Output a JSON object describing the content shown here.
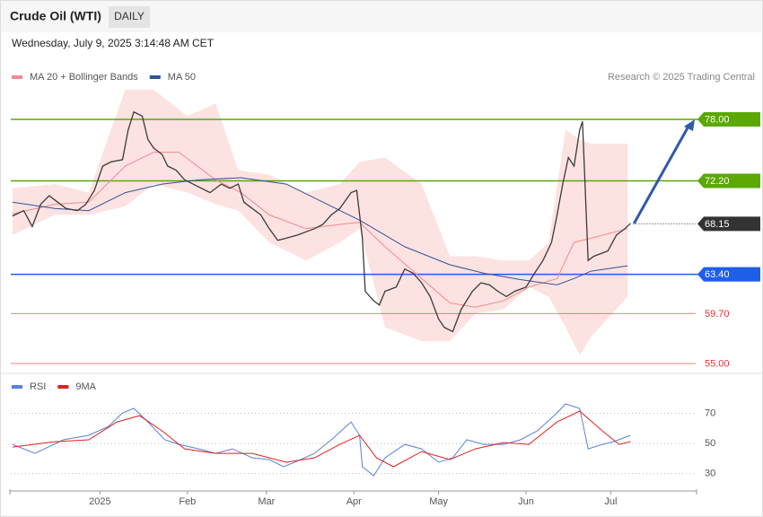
{
  "header": {
    "title": "Crude Oil (WTI)",
    "timeframe": "DAILY",
    "timestamp": "Wednesday, July 9, 2025 3:14:48 AM CET"
  },
  "chart_data": [
    {
      "type": "line",
      "credit": "Research © 2025 Trading Central",
      "xlim": [
        -0.6,
        242.1
      ],
      "ylim": [
        54.15,
        85.86
      ],
      "band": {
        "x": [
          0,
          15,
          27,
          40,
          50,
          62,
          72,
          80,
          91,
          104,
          116,
          123,
          132,
          145,
          155,
          164,
          174,
          183,
          190,
          196,
          201,
          205,
          218
        ],
        "upper": [
          71.5,
          71.9,
          71.1,
          80.8,
          80.8,
          78.3,
          79.5,
          73.2,
          72.8,
          71.1,
          71.9,
          74.0,
          74.4,
          71.9,
          65.1,
          65.1,
          64.7,
          64.7,
          66.4,
          77.0,
          76.1,
          75.7,
          75.7
        ],
        "lower": [
          67.1,
          69.0,
          69.0,
          69.8,
          71.9,
          71.1,
          70.0,
          69.4,
          66.4,
          64.7,
          66.4,
          67.7,
          58.4,
          57.1,
          57.1,
          59.7,
          60.1,
          62.2,
          61.3,
          58.4,
          55.8,
          57.5,
          61.3
        ],
        "color": "#fde2e2"
      },
      "series": [
        {
          "name": "MA 20 + Bollinger Bands",
          "color": "#f08a8a",
          "x": [
            0,
            15,
            27,
            40,
            50,
            59,
            72,
            81,
            91,
            104,
            116,
            123,
            132,
            145,
            155,
            164,
            174,
            183,
            193,
            199,
            205,
            218
          ],
          "values": [
            69.1,
            70.0,
            70.2,
            73.6,
            74.9,
            74.9,
            72.3,
            71.1,
            69.0,
            67.7,
            68.1,
            68.3,
            66.0,
            63.0,
            60.7,
            60.3,
            60.9,
            62.2,
            63.0,
            66.4,
            66.8,
            67.7
          ]
        },
        {
          "name": "MA 50",
          "color": "#2e5597",
          "x": [
            0,
            15,
            27,
            40,
            53,
            66,
            81,
            97,
            110,
            123,
            139,
            155,
            167,
            180,
            193,
            199,
            205,
            218
          ],
          "values": [
            70.2,
            69.6,
            69.4,
            71.1,
            71.9,
            72.3,
            72.5,
            71.9,
            70.2,
            68.5,
            66.0,
            64.3,
            63.5,
            62.9,
            62.4,
            63.0,
            63.7,
            64.2
          ]
        },
        {
          "color": "#3a3a3a",
          "x": [
            0,
            4,
            7,
            10,
            13,
            16,
            19,
            23,
            26,
            29,
            32,
            35,
            39,
            41,
            43,
            46,
            48,
            50,
            53,
            55,
            58,
            61,
            64,
            67,
            70,
            74,
            77,
            80,
            82,
            85,
            88,
            91,
            94,
            97,
            101,
            104,
            107,
            110,
            113,
            116,
            120,
            122,
            124,
            125,
            128,
            130,
            132,
            136,
            139,
            142,
            145,
            148,
            151,
            153,
            156,
            159,
            163,
            166,
            169,
            172,
            175,
            178,
            182,
            185,
            188,
            191,
            193,
            195,
            197,
            199,
            201,
            202,
            204,
            206,
            209,
            211,
            214,
            217,
            219
          ],
          "values": [
            68.9,
            69.4,
            67.9,
            70.0,
            70.8,
            70.2,
            69.6,
            69.4,
            70.0,
            71.3,
            73.6,
            74.0,
            74.2,
            77.0,
            78.7,
            78.3,
            76.1,
            75.3,
            74.7,
            73.6,
            73.2,
            72.3,
            71.9,
            71.5,
            71.1,
            71.9,
            71.5,
            71.9,
            70.2,
            69.6,
            69.0,
            67.7,
            66.6,
            66.8,
            67.1,
            67.4,
            67.7,
            68.1,
            69.0,
            69.6,
            71.1,
            71.3,
            66.8,
            61.8,
            60.9,
            60.5,
            61.8,
            62.2,
            63.9,
            63.5,
            62.6,
            61.3,
            59.2,
            58.4,
            58.0,
            60.1,
            61.8,
            62.6,
            62.4,
            61.8,
            61.3,
            61.8,
            62.2,
            63.5,
            64.7,
            66.4,
            69.0,
            71.9,
            74.4,
            73.6,
            77.0,
            77.8,
            64.7,
            65.1,
            65.4,
            65.6,
            67.1,
            67.7,
            68.2
          ]
        }
      ],
      "levels": [
        {
          "value": 78,
          "label": "78.00",
          "color": "#5aa800",
          "style": "solid",
          "box": true
        },
        {
          "value": 72.2,
          "label": "72.20",
          "color": "#5aa800",
          "style": "solid",
          "box": true
        },
        {
          "value": 68.15,
          "label": "68.15",
          "color": "#333333",
          "style": "dotted",
          "box": true
        },
        {
          "value": 63.4,
          "label": "63.40",
          "color": "#1e5ee8",
          "style": "solid",
          "box": true
        },
        {
          "value": 59.7,
          "label": "59.70",
          "color": "#e53030",
          "style": "solid",
          "box": false
        },
        {
          "value": 55,
          "label": "55.00",
          "color": "#e53030",
          "style": "solid",
          "box": false
        }
      ]
    },
    {
      "type": "line",
      "xlim": [
        -0.6,
        242.1
      ],
      "ylim": [
        19.6,
        94.2
      ],
      "yticks": [
        70,
        50,
        30
      ],
      "xticks": [
        {
          "value": 31,
          "label": "2025"
        },
        {
          "value": 62,
          "label": "Feb"
        },
        {
          "value": 90,
          "label": "Mar"
        },
        {
          "value": 121,
          "label": "Apr"
        },
        {
          "value": 151,
          "label": "May"
        },
        {
          "value": 182,
          "label": "Jun"
        },
        {
          "value": 212,
          "label": "Jul"
        }
      ],
      "series": [
        {
          "name": "RSI",
          "color": "#5b7fdc",
          "x": [
            0,
            8,
            18,
            27,
            34,
            39,
            43,
            48,
            54,
            59,
            66,
            72,
            78,
            85,
            91,
            96,
            100,
            107,
            113,
            120,
            123,
            124,
            128,
            132,
            139,
            145,
            151,
            156,
            161,
            167,
            174,
            180,
            186,
            193,
            196,
            201,
            204,
            209,
            213,
            219
          ],
          "values": [
            49.4,
            43.4,
            52.4,
            55.4,
            61.3,
            70.3,
            73.3,
            64.3,
            52.4,
            49.4,
            46.4,
            43.4,
            46.4,
            40.4,
            39.3,
            34.5,
            37.5,
            43.4,
            52.4,
            64.3,
            55.4,
            34.5,
            28.5,
            40.4,
            49.4,
            46.4,
            37.5,
            40.4,
            52.4,
            49.4,
            49.4,
            52.4,
            58.4,
            70.3,
            76.3,
            73.3,
            46.4,
            49.4,
            51.2,
            55.4
          ]
        },
        {
          "name": "9MA",
          "color": "#e02020",
          "x": [
            0,
            15,
            27,
            37,
            45,
            53,
            61,
            72,
            85,
            97,
            107,
            116,
            123,
            129,
            135,
            145,
            155,
            164,
            174,
            183,
            193,
            201,
            209,
            215,
            219
          ],
          "values": [
            47.6,
            51.2,
            52.4,
            64.3,
            68.5,
            58.4,
            46.4,
            43.4,
            43.4,
            37.5,
            40.4,
            49.4,
            55.4,
            40.4,
            34.5,
            44.6,
            39.3,
            46.4,
            50.6,
            49.4,
            64.3,
            71.5,
            58.4,
            49.4,
            51.2
          ]
        }
      ]
    }
  ]
}
